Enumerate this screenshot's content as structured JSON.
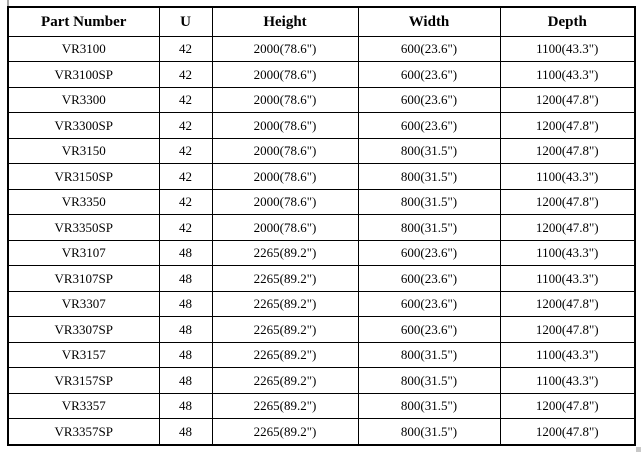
{
  "page": {
    "background_color": "#ffffff",
    "table_border_color": "#000000",
    "handle_color": "#a6a6a6"
  },
  "table": {
    "columns": [
      "Part Number",
      "U",
      "Height",
      "Width",
      "Depth"
    ],
    "column_keys": [
      "part-number",
      "u",
      "height",
      "width",
      "depth"
    ],
    "rows": [
      [
        "VR3100",
        "42",
        "2000(78.6\")",
        "600(23.6\")",
        "1100(43.3\")"
      ],
      [
        "VR3100SP",
        "42",
        "2000(78.6\")",
        "600(23.6\")",
        "1100(43.3\")"
      ],
      [
        "VR3300",
        "42",
        "2000(78.6\")",
        "600(23.6\")",
        "1200(47.8\")"
      ],
      [
        "VR3300SP",
        "42",
        "2000(78.6\")",
        "600(23.6\")",
        "1200(47.8\")"
      ],
      [
        "VR3150",
        "42",
        "2000(78.6\")",
        "800(31.5\")",
        "1200(47.8\")"
      ],
      [
        "VR3150SP",
        "42",
        "2000(78.6\")",
        "800(31.5\")",
        "1100(43.3\")"
      ],
      [
        "VR3350",
        "42",
        "2000(78.6\")",
        "800(31.5\")",
        "1200(47.8\")"
      ],
      [
        "VR3350SP",
        "42",
        "2000(78.6\")",
        "800(31.5\")",
        "1200(47.8\")"
      ],
      [
        "VR3107",
        "48",
        "2265(89.2\")",
        "600(23.6\")",
        "1100(43.3\")"
      ],
      [
        "VR3107SP",
        "48",
        "2265(89.2\")",
        "600(23.6\")",
        "1100(43.3\")"
      ],
      [
        "VR3307",
        "48",
        "2265(89.2\")",
        "600(23.6\")",
        "1200(47.8\")"
      ],
      [
        "VR3307SP",
        "48",
        "2265(89.2\")",
        "600(23.6\")",
        "1200(47.8\")"
      ],
      [
        "VR3157",
        "48",
        "2265(89.2\")",
        "800(31.5\")",
        "1100(43.3\")"
      ],
      [
        "VR3157SP",
        "48",
        "2265(89.2\")",
        "800(31.5\")",
        "1100(43.3\")"
      ],
      [
        "VR3357",
        "48",
        "2265(89.2\")",
        "800(31.5\")",
        "1200(47.8\")"
      ],
      [
        "VR3357SP",
        "48",
        "2265(89.2\")",
        "800(31.5\")",
        "1200(47.8\")"
      ]
    ]
  }
}
